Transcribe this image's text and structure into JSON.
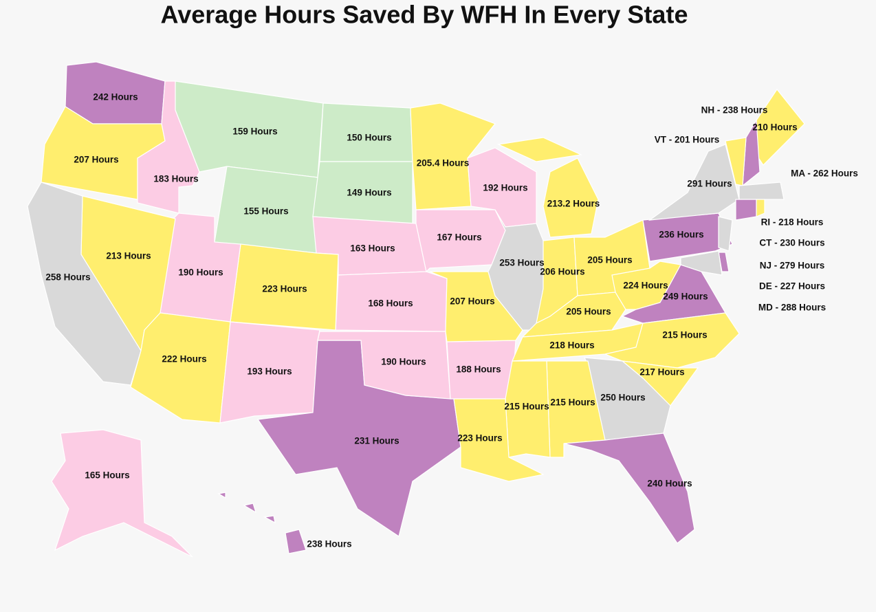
{
  "title": "Average Hours Saved By WFH In Every State",
  "states": [
    {
      "label": "242 Hours",
      "color": "#bf82bf"
    },
    {
      "label": "207 Hours",
      "color": "#ffee6e"
    },
    {
      "label": "183 Hours",
      "color": "#fccce4"
    },
    {
      "label": "159 Hours",
      "color": "#cdebc8"
    },
    {
      "label": "155 Hours",
      "color": "#cdebc8"
    },
    {
      "label": "150 Hours",
      "color": "#cdebc8"
    },
    {
      "label": "149 Hours",
      "color": "#cdebc8"
    },
    {
      "label": "163 Hours",
      "color": "#fccce4"
    },
    {
      "label": "168 Hours",
      "color": "#fccce4"
    },
    {
      "label": "223 Hours",
      "color": "#ffee6e"
    },
    {
      "label": "190 Hours",
      "color": "#fccce4"
    },
    {
      "label": "213 Hours",
      "color": "#ffee6e"
    },
    {
      "label": "258 Hours",
      "color": "#d9d9d9"
    },
    {
      "label": "222 Hours",
      "color": "#ffee6e"
    },
    {
      "label": "193 Hours",
      "color": "#fccce4"
    },
    {
      "label": "231 Hours",
      "color": "#bf82bf"
    },
    {
      "label": "190 Hours",
      "color": "#fccce4"
    },
    {
      "label": "188 Hours",
      "color": "#fccce4"
    },
    {
      "label": "207 Hours",
      "color": "#ffee6e"
    },
    {
      "label": "167 Hours",
      "color": "#fccce4"
    },
    {
      "label": "205.4 Hours",
      "color": "#ffee6e"
    },
    {
      "label": "192 Hours",
      "color": "#fccce4"
    },
    {
      "label": "253 Hours",
      "color": "#d9d9d9"
    },
    {
      "label": "206 Hours",
      "color": "#ffee6e"
    },
    {
      "label": "213.2 Hours",
      "color": "#ffee6e"
    },
    {
      "label": "205 Hours",
      "color": "#ffee6e"
    },
    {
      "label": "205 Hours",
      "color": "#ffee6e"
    },
    {
      "label": "218 Hours",
      "color": "#ffee6e"
    },
    {
      "label": "224 Hours",
      "color": "#ffee6e"
    },
    {
      "label": "249 Hours",
      "color": "#bf82bf"
    },
    {
      "label": "215 Hours",
      "color": "#ffee6e"
    },
    {
      "label": "217 Hours",
      "color": "#ffee6e"
    },
    {
      "label": "250 Hours",
      "color": "#d9d9d9"
    },
    {
      "label": "215 Hours",
      "color": "#ffee6e"
    },
    {
      "label": "215 Hours",
      "color": "#ffee6e"
    },
    {
      "label": "223 Hours",
      "color": "#ffee6e"
    },
    {
      "label": "240 Hours",
      "color": "#bf82bf"
    },
    {
      "label": "236 Hours",
      "color": "#bf82bf"
    },
    {
      "label": "291 Hours",
      "color": "#d9d9d9"
    },
    {
      "label": "210 Hours",
      "color": "#ffee6e"
    },
    {
      "label": "165 Hours",
      "color": "#fccce4"
    },
    {
      "label": "238 Hours",
      "color": "#bf82bf"
    }
  ],
  "callout_states": [
    {
      "label": "NH - 238 Hours",
      "color": "#bf82bf"
    },
    {
      "label": "VT - 201 Hours",
      "color": "#ffee6e"
    },
    {
      "label": "MA - 262 Hours",
      "color": "#d9d9d9"
    },
    {
      "label": "RI - 218 Hours",
      "color": "#ffee6e"
    },
    {
      "label": "CT - 230 Hours",
      "color": "#bf82bf"
    },
    {
      "label": "NJ - 279 Hours",
      "color": "#d9d9d9"
    },
    {
      "label": "DE - 227 Hours",
      "color": "#bf82bf"
    },
    {
      "label": "MD - 288 Hours",
      "color": "#d9d9d9"
    }
  ]
}
